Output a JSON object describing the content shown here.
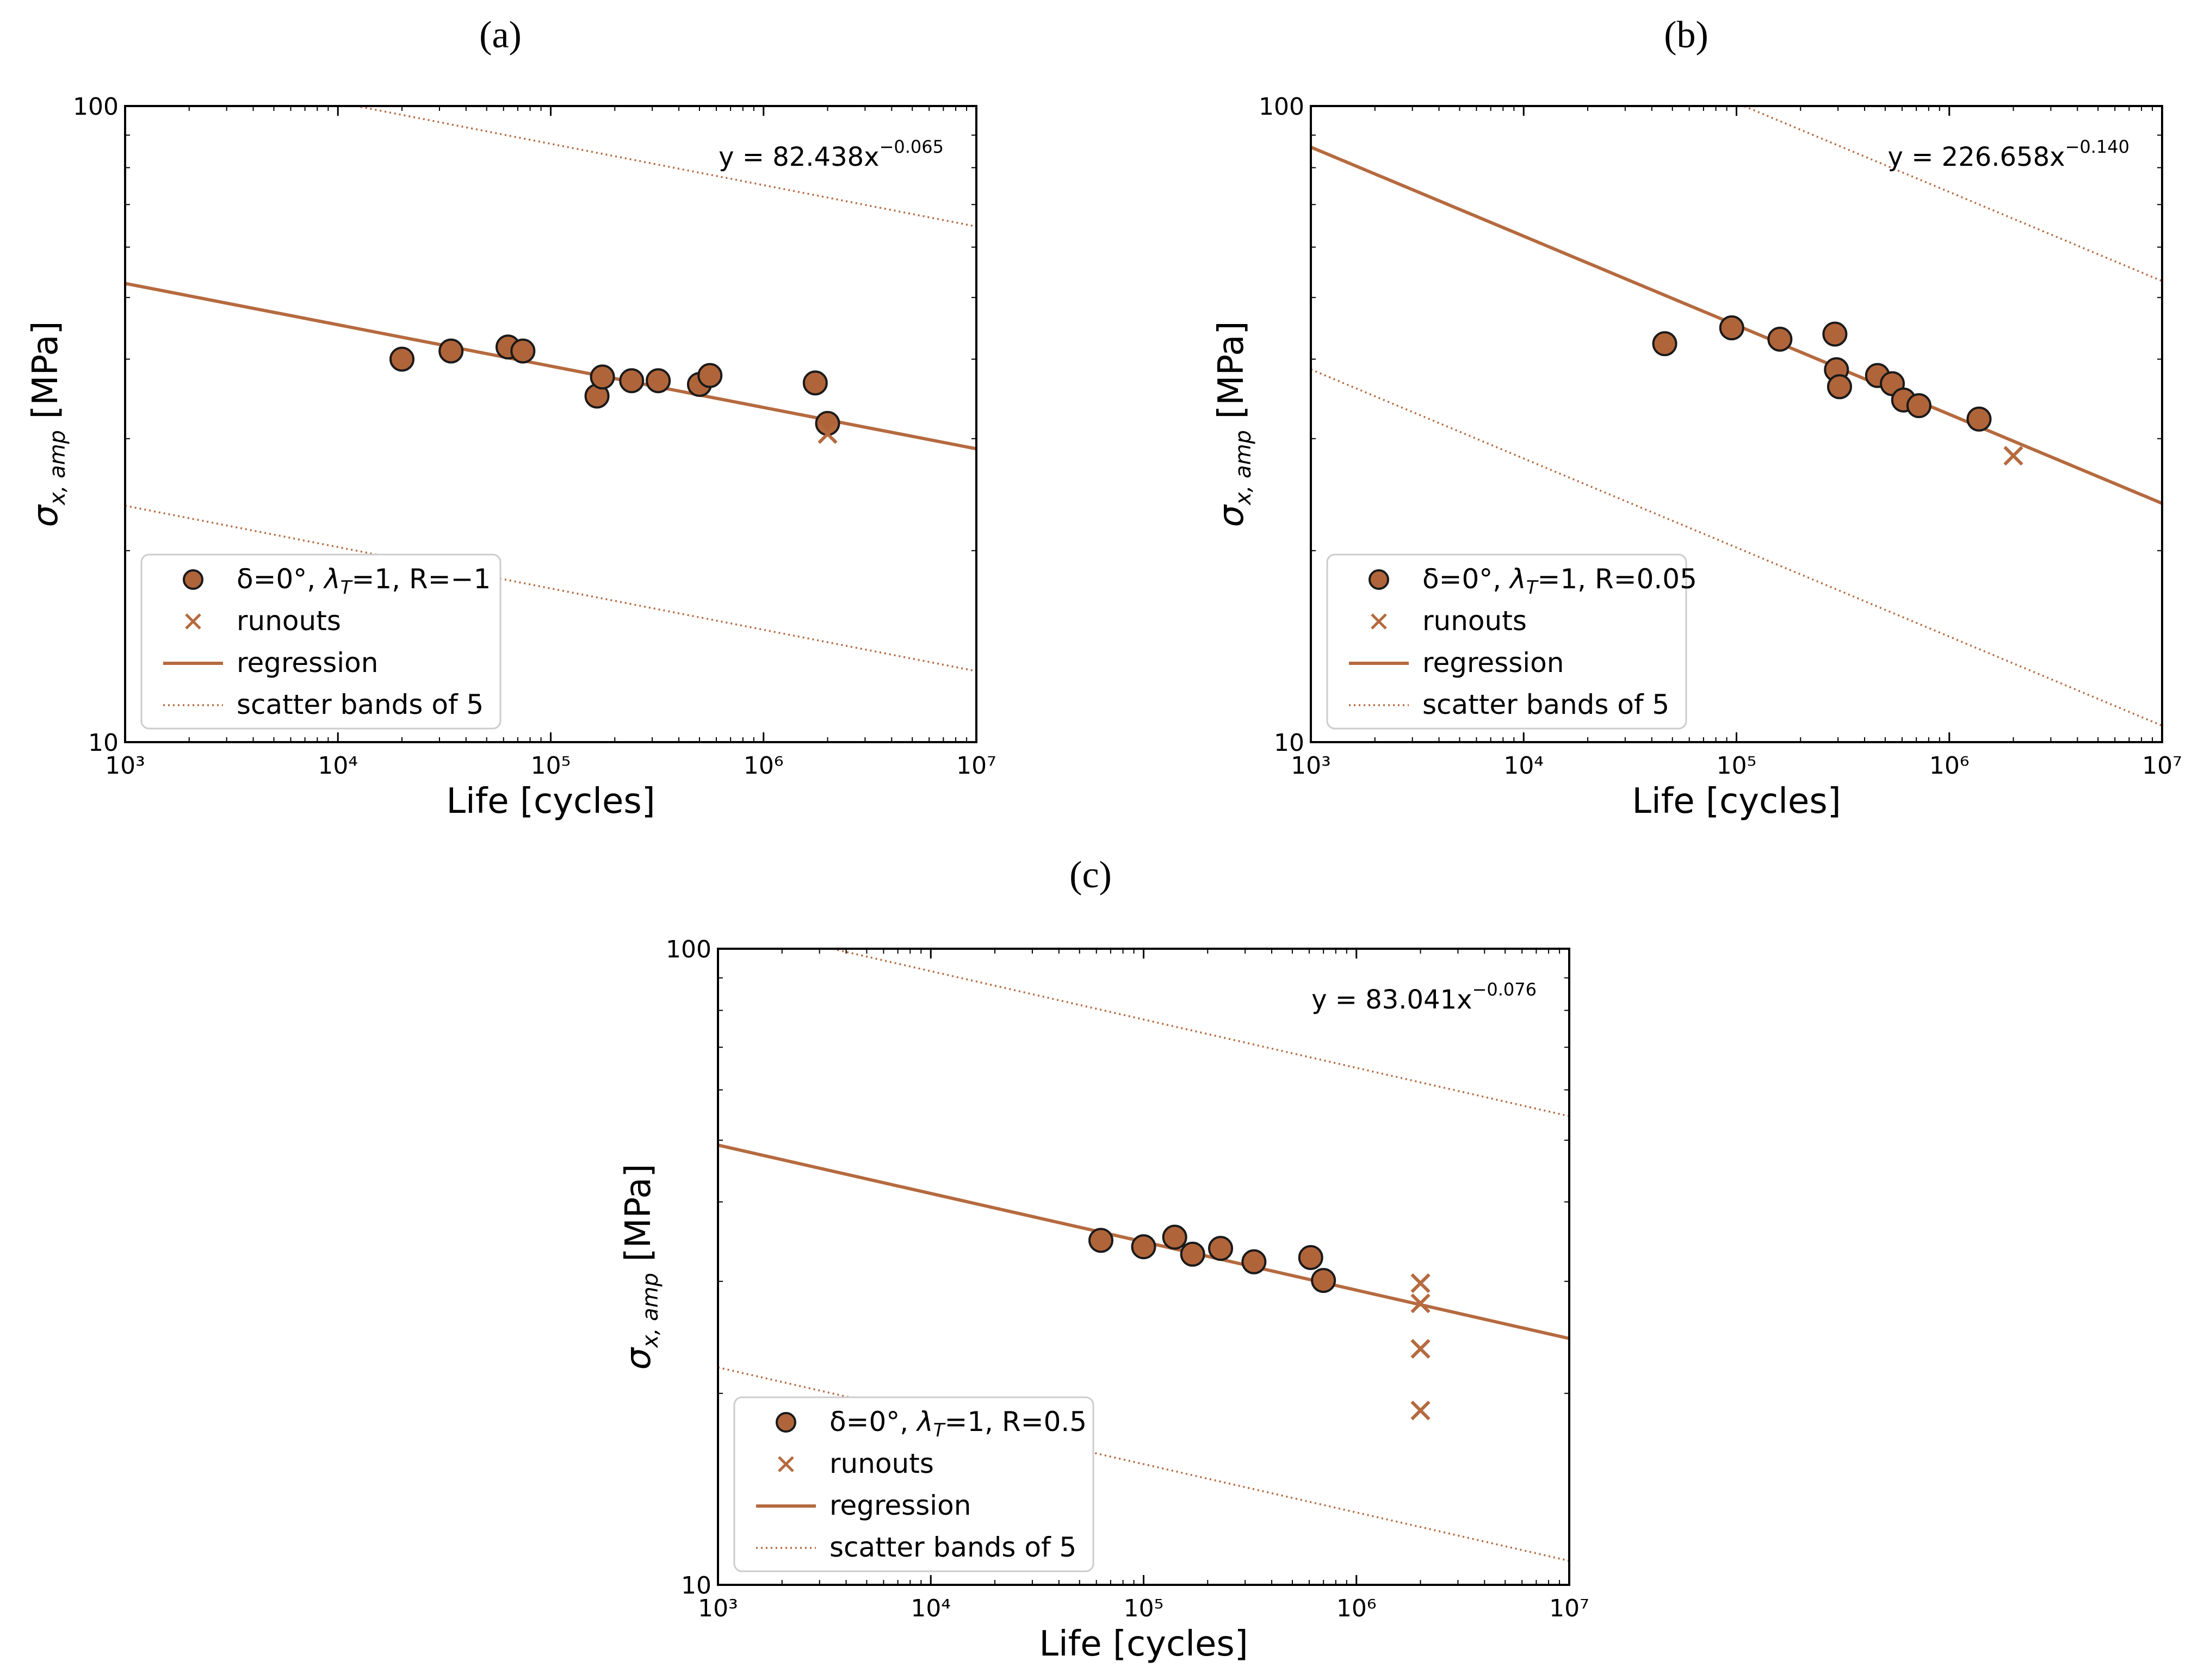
{
  "panel_labels": [
    "(a)",
    "(b)",
    "(c)"
  ],
  "chart_data": [
    {
      "type": "scatter",
      "panel": "(a)",
      "xlabel": "Life [cycles]",
      "ylabel": "σx,amp [MPa]",
      "xscale": "log",
      "yscale": "log",
      "xlim": [
        1000,
        10000000
      ],
      "ylim": [
        10,
        100
      ],
      "x_tick_labels": [
        "10³",
        "10⁴",
        "10⁵",
        "10⁶",
        "10⁷"
      ],
      "y_tick_labels": [
        "10",
        "100"
      ],
      "equation": {
        "prefix": "y = 82.438x",
        "exponent": "−0.065"
      },
      "regression": {
        "a": 82.438,
        "b": -0.065
      },
      "scatter_factor": 5,
      "series": [
        {
          "name": "δ=0°, λT=1, R=−1",
          "marker": "circle",
          "x": [
            20000,
            34000,
            63000,
            74000,
            165000,
            175000,
            240000,
            320000,
            500000,
            560000,
            1750000,
            2000000
          ],
          "y": [
            40.0,
            41.2,
            41.8,
            41.2,
            35.0,
            37.5,
            37.0,
            37.0,
            36.5,
            37.7,
            36.7,
            31.7
          ]
        },
        {
          "name": "runouts",
          "marker": "x",
          "x": [
            2000000
          ],
          "y": [
            30.5
          ]
        }
      ],
      "legend": {
        "location": "lower-left",
        "entries": [
          {
            "symbol": "circle",
            "label": "δ=0°, λT=1, R=−1",
            "main": "δ=0°, ",
            "sym": "λ",
            "sub": "T",
            "rest": "=1, R=−1"
          },
          {
            "symbol": "x",
            "label": "runouts"
          },
          {
            "symbol": "solid",
            "label": "regression"
          },
          {
            "symbol": "dotted",
            "label": "scatter bands of 5"
          }
        ]
      }
    },
    {
      "type": "scatter",
      "panel": "(b)",
      "xlabel": "Life [cycles]",
      "ylabel": "σx,amp [MPa]",
      "xscale": "log",
      "yscale": "log",
      "xlim": [
        1000,
        10000000
      ],
      "ylim": [
        10,
        100
      ],
      "x_tick_labels": [
        "10³",
        "10⁴",
        "10⁵",
        "10⁶",
        "10⁷"
      ],
      "y_tick_labels": [
        "10",
        "100"
      ],
      "equation": {
        "prefix": "y = 226.658x",
        "exponent": "−0.140"
      },
      "regression": {
        "a": 226.658,
        "b": -0.14
      },
      "scatter_factor": 5,
      "series": [
        {
          "name": "δ=0°, λT=1, R=0.05",
          "marker": "circle",
          "x": [
            46000,
            95000,
            160000,
            290000,
            295000,
            305000,
            460000,
            540000,
            610000,
            720000,
            1380000
          ],
          "y": [
            42.3,
            44.8,
            43.0,
            43.8,
            38.5,
            36.2,
            37.7,
            36.6,
            34.5,
            33.8,
            32.2
          ]
        },
        {
          "name": "runouts",
          "marker": "x",
          "x": [
            2000000
          ],
          "y": [
            28.2
          ]
        }
      ],
      "legend": {
        "location": "lower-left",
        "entries": [
          {
            "symbol": "circle",
            "label": "δ=0°, λT=1, R=0.05",
            "main": "δ=0°, ",
            "sym": "λ",
            "sub": "T",
            "rest": "=1, R=0.05"
          },
          {
            "symbol": "x",
            "label": "runouts"
          },
          {
            "symbol": "solid",
            "label": "regression"
          },
          {
            "symbol": "dotted",
            "label": "scatter bands of 5"
          }
        ]
      }
    },
    {
      "type": "scatter",
      "panel": "(c)",
      "xlabel": "Life [cycles]",
      "ylabel": "σx,amp [MPa]",
      "xscale": "log",
      "yscale": "log",
      "xlim": [
        1000,
        10000000
      ],
      "ylim": [
        10,
        100
      ],
      "x_tick_labels": [
        "10³",
        "10⁴",
        "10⁵",
        "10⁶",
        "10⁷"
      ],
      "y_tick_labels": [
        "10",
        "100"
      ],
      "equation": {
        "prefix": "y = 83.041x",
        "exponent": "−0.076"
      },
      "regression": {
        "a": 83.041,
        "b": -0.076
      },
      "scatter_factor": 5,
      "series": [
        {
          "name": "δ=0°, λT=1, R=0.5",
          "marker": "circle",
          "x": [
            63000,
            100000,
            140000,
            170000,
            230000,
            330000,
            610000,
            700000
          ],
          "y": [
            34.8,
            34.0,
            35.2,
            33.1,
            33.8,
            32.2,
            32.7,
            30.1
          ]
        },
        {
          "name": "runouts",
          "marker": "x",
          "x": [
            2000000,
            2000000,
            2000000,
            2000000
          ],
          "y": [
            29.8,
            27.7,
            23.5,
            18.8
          ]
        }
      ],
      "legend": {
        "location": "lower-left",
        "entries": [
          {
            "symbol": "circle",
            "label": "δ=0°, λT=1, R=0.5",
            "main": "δ=0°, ",
            "sym": "λ",
            "sub": "T",
            "rest": "=1, R=0.5"
          },
          {
            "symbol": "x",
            "label": "runouts"
          },
          {
            "symbol": "solid",
            "label": "regression"
          },
          {
            "symbol": "dotted",
            "label": "scatter bands of 5"
          }
        ]
      }
    }
  ],
  "colors": {
    "line": "#b56a3f",
    "marker_fill": "#b0643a",
    "marker_edge": "#1a1a1a",
    "runout": "#b56a3f"
  },
  "axis_label_parts": {
    "sigma": "σ",
    "sub": "x, amp",
    "unit": " [MPa]"
  }
}
